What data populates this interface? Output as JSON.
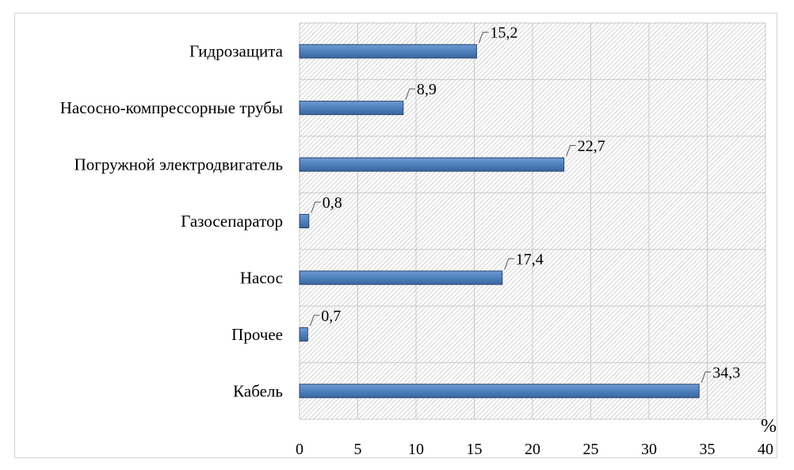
{
  "chart_data": {
    "type": "bar",
    "orientation": "horizontal",
    "categories": [
      "Гидрозащита",
      "Насосно-компрессорные трубы",
      "Погружной электродвигатель",
      "Газосепаратор",
      "Насос",
      "Прочее",
      "Кабель"
    ],
    "values": [
      15.2,
      8.9,
      22.7,
      0.8,
      17.4,
      0.7,
      34.3
    ],
    "data_labels": [
      "15,2",
      "8,9",
      "22,7",
      "0,8",
      "17,4",
      "0,7",
      "34,3"
    ],
    "xlim": [
      0,
      40
    ],
    "xticks": [
      0,
      5,
      10,
      15,
      20,
      25,
      30,
      35,
      40
    ],
    "xlabel": "%",
    "grid": true,
    "legend": "none",
    "colors": {
      "bar_fill": "#4f81bd",
      "bar_stroke": "#27456e",
      "hatch": "#b5b5b5",
      "grid": "#c8c8c8"
    }
  }
}
